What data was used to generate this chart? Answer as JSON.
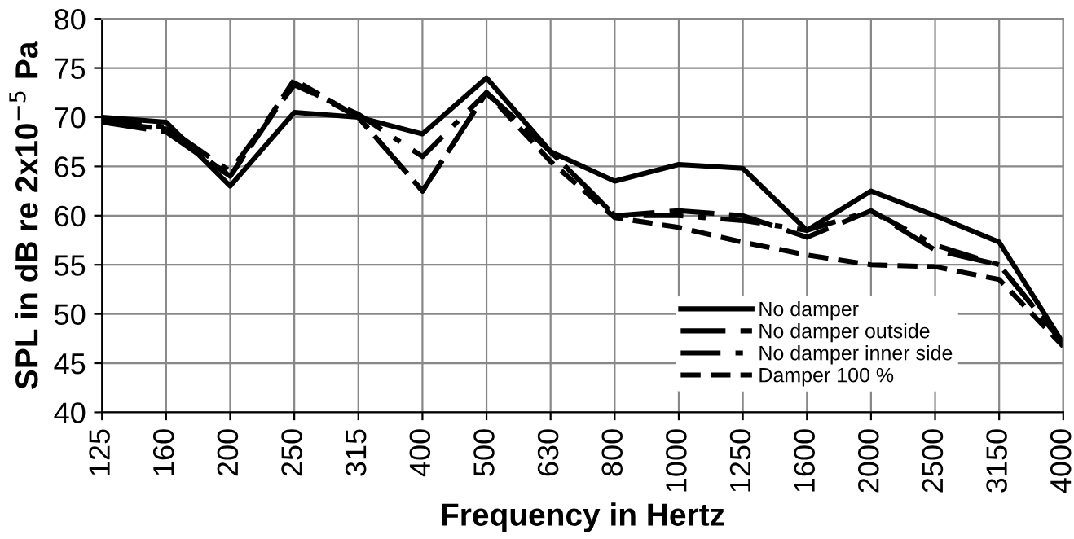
{
  "chart_data": {
    "type": "line",
    "xlabel": "Frequency in Hertz",
    "ylabel": "SPL in dB re 2x10$^{−5}$ Pa",
    "categories": [
      "125",
      "160",
      "200",
      "250",
      "315",
      "400",
      "500",
      "630",
      "800",
      "1000",
      "1250",
      "1600",
      "2000",
      "2500",
      "3150",
      "4000"
    ],
    "series": [
      {
        "name": "No damper",
        "color": "#000000",
        "line_style": "solid",
        "values": [
          70,
          69.5,
          63,
          70.5,
          70,
          68.3,
          74,
          66.5,
          63.5,
          65.2,
          64.8,
          58.5,
          62.5,
          60,
          57.3,
          47
        ]
      },
      {
        "name": "No damper outside",
        "color": "#000000",
        "line_style": "dashed",
        "values": [
          69.5,
          68.5,
          64,
          73.5,
          70,
          62.5,
          72.5,
          66.5,
          60,
          60.5,
          60,
          57.8,
          60.5,
          56.5,
          55,
          47
        ]
      },
      {
        "name": "No damper inner side",
        "color": "#000000",
        "line_style": "dashdot",
        "values": [
          69.8,
          69,
          64.5,
          73.3,
          70.3,
          66,
          72.5,
          66.5,
          60,
          60,
          59.5,
          58.5,
          60.5,
          57,
          55,
          47
        ]
      },
      {
        "name": "Damper 100 %",
        "color": "#000000",
        "line_style": "dotted",
        "values": [
          69.5,
          68.8,
          64,
          73.8,
          70,
          62.5,
          72.5,
          65.5,
          59.8,
          58.8,
          57.3,
          56,
          55,
          54.8,
          53.5,
          46.7
        ]
      }
    ],
    "ylim": [
      40,
      80
    ],
    "yticks": [
      40,
      45,
      50,
      55,
      60,
      65,
      70,
      75,
      80
    ],
    "grid": true,
    "legend": "bottom right",
    "marker": "none"
  }
}
